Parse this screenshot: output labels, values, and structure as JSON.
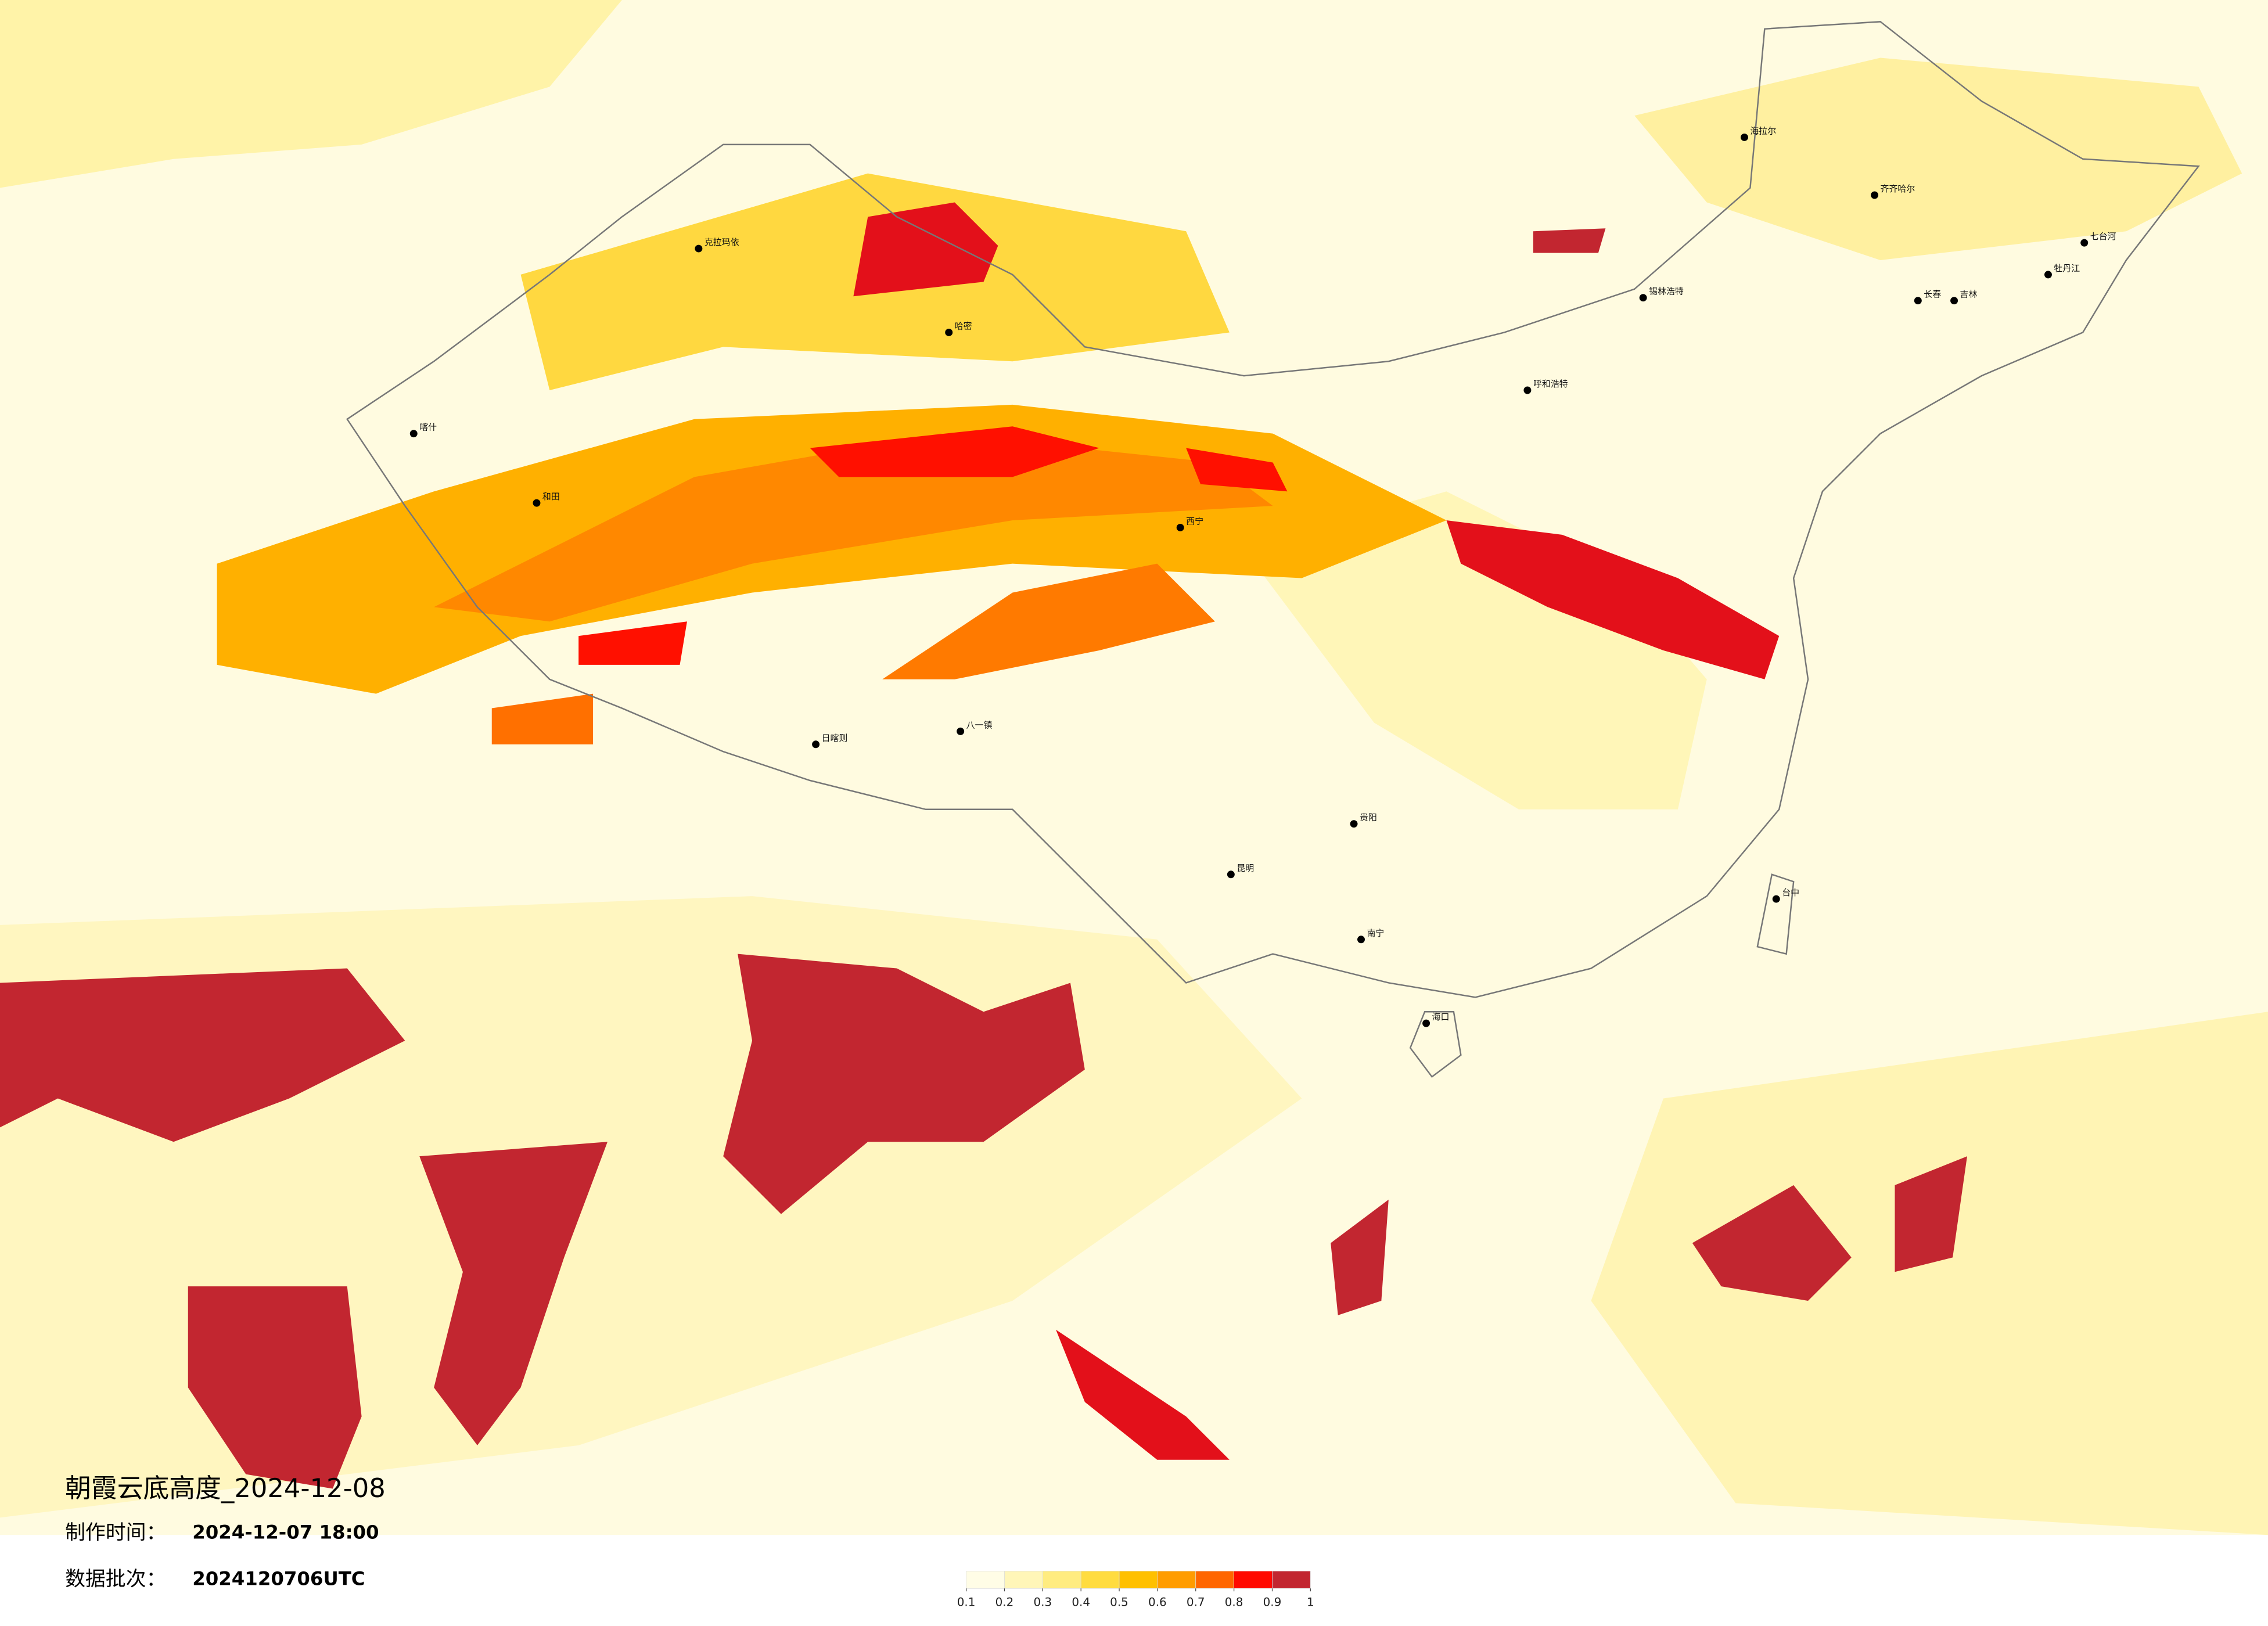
{
  "map": {
    "title": "朝霞云底高度_2024-12-08",
    "made_time_label": "制作时间：",
    "made_time": "2024-12-07 18:00",
    "batch_label": "数据批次：",
    "batch": "2024120706UTC",
    "colorbar": {
      "ticks": [
        0.1,
        0.2,
        0.3,
        0.4,
        0.5,
        0.6,
        0.7,
        0.8,
        0.9,
        1
      ],
      "colors": [
        "#fffde6",
        "#fff6b8",
        "#ffec80",
        "#ffdc40",
        "#ffc000",
        "#ff9c00",
        "#ff6600",
        "#ff0a00",
        "#c22630"
      ]
    },
    "cities": [
      "海拉尔",
      "齐齐哈尔",
      "长春",
      "吉林",
      "牡丹江",
      "七台河",
      "呼和浩特",
      "锡林浩特",
      "克拉玛依",
      "哈密",
      "喀什",
      "和田",
      "日喀则",
      "八一镇",
      "西宁",
      "昆明",
      "贵阳",
      "南宁",
      "海口",
      "台中"
    ]
  }
}
